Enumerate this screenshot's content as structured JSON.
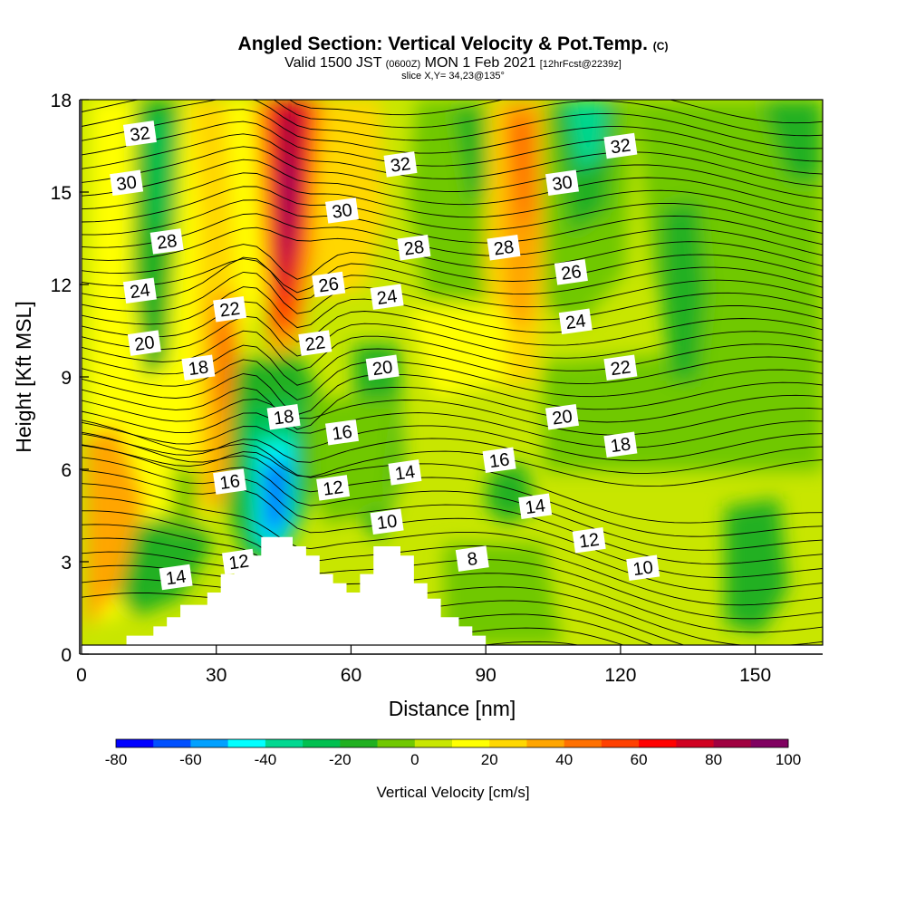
{
  "chart_data": {
    "type": "contour",
    "title": "Angled Section: Vertical Velocity & Pot.Temp.",
    "title_mark": "(C)",
    "subtitle": {
      "valid_prefix": "Valid 1500 JST",
      "utc": "(0600Z)",
      "date": "MON 1 Feb 2021",
      "forecast": "[12hrFcst@2239z]"
    },
    "slice_label": "slice X,Y= 34,23@135°",
    "xlabel": "Distance [nm]",
    "ylabel": "Height [Kft MSL]",
    "xlim": [
      0,
      165
    ],
    "ylim": [
      0,
      18
    ],
    "x_ticks": [
      "0",
      "30",
      "60",
      "90",
      "120",
      "150"
    ],
    "y_ticks": [
      "0",
      "3",
      "6",
      "9",
      "12",
      "15",
      "18"
    ],
    "colorbar": {
      "label": "Vertical Velocity [cm/s]",
      "tick_labels": [
        "-80",
        "-60",
        "-40",
        "-20",
        "0",
        "20",
        "40",
        "60",
        "80",
        "100"
      ],
      "range": [
        -80,
        100
      ],
      "step": 10,
      "colors": [
        "#0000ff",
        "#0050ff",
        "#00a0ff",
        "#00ffff",
        "#00d890",
        "#00c050",
        "#20b020",
        "#70c800",
        "#c8e600",
        "#ffff00",
        "#ffd700",
        "#ffa500",
        "#ff7000",
        "#ff4000",
        "#ff0000",
        "#d00020",
        "#a00040",
        "#800060"
      ]
    },
    "contour_labels": [
      {
        "text": "32",
        "x": 13,
        "y": 16.9
      },
      {
        "text": "30",
        "x": 10,
        "y": 15.3
      },
      {
        "text": "28",
        "x": 19,
        "y": 13.4
      },
      {
        "text": "24",
        "x": 13,
        "y": 11.8
      },
      {
        "text": "22",
        "x": 33,
        "y": 11.2
      },
      {
        "text": "20",
        "x": 14,
        "y": 10.1
      },
      {
        "text": "18",
        "x": 26,
        "y": 9.3
      },
      {
        "text": "16",
        "x": 33,
        "y": 5.6
      },
      {
        "text": "14",
        "x": 21,
        "y": 2.5
      },
      {
        "text": "12",
        "x": 35,
        "y": 3.0
      },
      {
        "text": "32",
        "x": 71,
        "y": 15.9
      },
      {
        "text": "30",
        "x": 58,
        "y": 14.4
      },
      {
        "text": "28",
        "x": 74,
        "y": 13.2
      },
      {
        "text": "26",
        "x": 55,
        "y": 12.0
      },
      {
        "text": "24",
        "x": 68,
        "y": 11.6
      },
      {
        "text": "22",
        "x": 52,
        "y": 10.1
      },
      {
        "text": "20",
        "x": 67,
        "y": 9.3
      },
      {
        "text": "18",
        "x": 45,
        "y": 7.7
      },
      {
        "text": "16",
        "x": 58,
        "y": 7.2
      },
      {
        "text": "14",
        "x": 72,
        "y": 5.9
      },
      {
        "text": "12",
        "x": 56,
        "y": 5.4
      },
      {
        "text": "10",
        "x": 68,
        "y": 4.3
      },
      {
        "text": "8",
        "x": 87,
        "y": 3.1
      },
      {
        "text": "32",
        "x": 120,
        "y": 16.5
      },
      {
        "text": "30",
        "x": 107,
        "y": 15.3
      },
      {
        "text": "28",
        "x": 94,
        "y": 13.2
      },
      {
        "text": "26",
        "x": 109,
        "y": 12.4
      },
      {
        "text": "24",
        "x": 110,
        "y": 10.8
      },
      {
        "text": "22",
        "x": 120,
        "y": 9.3
      },
      {
        "text": "20",
        "x": 107,
        "y": 7.7
      },
      {
        "text": "18",
        "x": 120,
        "y": 6.8
      },
      {
        "text": "16",
        "x": 93,
        "y": 6.3
      },
      {
        "text": "14",
        "x": 101,
        "y": 4.8
      },
      {
        "text": "12",
        "x": 113,
        "y": 3.7
      },
      {
        "text": "10",
        "x": 125,
        "y": 2.8
      }
    ],
    "terrain_kft": [
      [
        0,
        0
      ],
      [
        10,
        0
      ],
      [
        10,
        0.6
      ],
      [
        16,
        0.6
      ],
      [
        16,
        0.9
      ],
      [
        19,
        0.9
      ],
      [
        19,
        1.2
      ],
      [
        22,
        1.2
      ],
      [
        22,
        1.6
      ],
      [
        28,
        1.6
      ],
      [
        28,
        2.0
      ],
      [
        31,
        2.0
      ],
      [
        31,
        2.6
      ],
      [
        34,
        2.6
      ],
      [
        34,
        2.9
      ],
      [
        37,
        2.9
      ],
      [
        37,
        3.2
      ],
      [
        40,
        3.2
      ],
      [
        40,
        3.8
      ],
      [
        47,
        3.8
      ],
      [
        47,
        3.5
      ],
      [
        50,
        3.5
      ],
      [
        50,
        3.2
      ],
      [
        53,
        3.2
      ],
      [
        53,
        2.6
      ],
      [
        56,
        2.6
      ],
      [
        56,
        2.3
      ],
      [
        59,
        2.3
      ],
      [
        59,
        2.0
      ],
      [
        62,
        2.0
      ],
      [
        62,
        2.6
      ],
      [
        65,
        2.6
      ],
      [
        65,
        3.5
      ],
      [
        71,
        3.5
      ],
      [
        71,
        3.2
      ],
      [
        74,
        3.2
      ],
      [
        74,
        2.3
      ],
      [
        77,
        2.3
      ],
      [
        77,
        1.8
      ],
      [
        80,
        1.8
      ],
      [
        80,
        1.2
      ],
      [
        84,
        1.2
      ],
      [
        84,
        0.9
      ],
      [
        87,
        0.9
      ],
      [
        87,
        0.6
      ],
      [
        90,
        0.6
      ],
      [
        90,
        0
      ],
      [
        165,
        0
      ]
    ]
  }
}
